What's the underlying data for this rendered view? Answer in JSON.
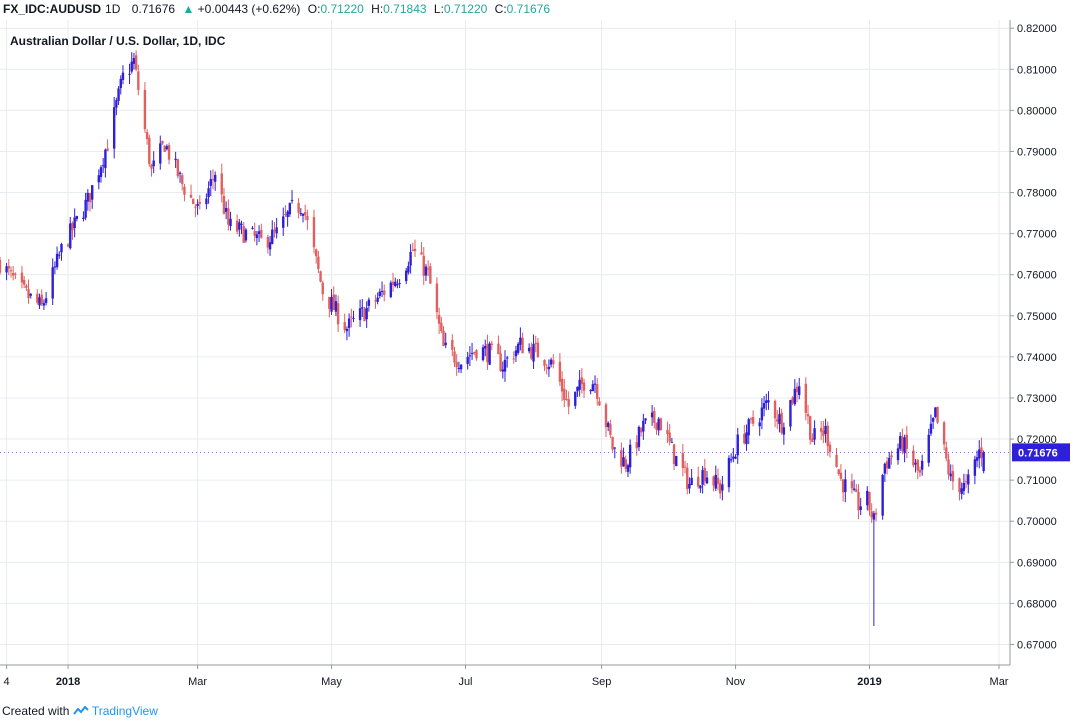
{
  "header": {
    "symbol": "FX_IDC:AUDUSD",
    "interval": "1D",
    "last": "0.71676",
    "change": "+0.00443 (+0.62%)",
    "o_label": "O:",
    "o_value": "0.71220",
    "h_label": "H:",
    "h_value": "0.71843",
    "l_label": "L:",
    "l_value": "0.71220",
    "c_label": "C:",
    "c_value": "0.71676",
    "arrow": "▲"
  },
  "subtitle": "Australian Dollar / U.S. Dollar, 1D, IDC",
  "footer": {
    "created_with": "Created with",
    "brand": "TradingView"
  },
  "colors": {
    "up": "#2e1fd8",
    "down": "#e06060",
    "price_tag": "#2e1fd8",
    "grid": "#e6ecf2",
    "accent_green": "#26a69a"
  },
  "chart_data": {
    "type": "candlestick",
    "title": "Australian Dollar / U.S. Dollar, 1D, IDC",
    "ylim": [
      0.665,
      0.822
    ],
    "y_ticks": [
      "0.82000",
      "0.81000",
      "0.80000",
      "0.79000",
      "0.78000",
      "0.77000",
      "0.76000",
      "0.75000",
      "0.74000",
      "0.73000",
      "0.72000",
      "0.71000",
      "0.70000",
      "0.69000",
      "0.68000",
      "0.67000"
    ],
    "x_ticks": [
      {
        "label": "4",
        "date": "2017-12-04"
      },
      {
        "label": "2018",
        "date": "2018-01-01"
      },
      {
        "label": "Mar",
        "date": "2018-03-01"
      },
      {
        "label": "May",
        "date": "2018-05-01"
      },
      {
        "label": "Jul",
        "date": "2018-07-01"
      },
      {
        "label": "Sep",
        "date": "2018-09-01"
      },
      {
        "label": "Nov",
        "date": "2018-11-01"
      },
      {
        "label": "2019",
        "date": "2019-01-01"
      },
      {
        "label": "Mar",
        "date": "2019-03-01"
      }
    ],
    "date_range": [
      "2017-12-01",
      "2019-03-06"
    ],
    "last_price": "0.71676",
    "close_path": [
      [
        "2017-12-01",
        0.763
      ],
      [
        "2017-12-11",
        0.756
      ],
      [
        "2017-12-20",
        0.752
      ],
      [
        "2017-12-29",
        0.766
      ],
      [
        "2018-01-10",
        0.778
      ],
      [
        "2018-01-19",
        0.792
      ],
      [
        "2018-01-26",
        0.808
      ],
      [
        "2018-01-31",
        0.812
      ],
      [
        "2018-02-08",
        0.785
      ],
      [
        "2018-02-14",
        0.792
      ],
      [
        "2018-02-22",
        0.782
      ],
      [
        "2018-03-02",
        0.775
      ],
      [
        "2018-03-09",
        0.785
      ],
      [
        "2018-03-15",
        0.772
      ],
      [
        "2018-03-23",
        0.77
      ],
      [
        "2018-03-30",
        0.768
      ],
      [
        "2018-04-06",
        0.77
      ],
      [
        "2018-04-13",
        0.776
      ],
      [
        "2018-04-18",
        0.777
      ],
      [
        "2018-04-27",
        0.756
      ],
      [
        "2018-05-08",
        0.747
      ],
      [
        "2018-05-16",
        0.751
      ],
      [
        "2018-05-25",
        0.756
      ],
      [
        "2018-06-01",
        0.76
      ],
      [
        "2018-06-07",
        0.766
      ],
      [
        "2018-06-14",
        0.76
      ],
      [
        "2018-06-21",
        0.742
      ],
      [
        "2018-06-29",
        0.739
      ],
      [
        "2018-07-06",
        0.742
      ],
      [
        "2018-07-12",
        0.741
      ],
      [
        "2018-07-18",
        0.738
      ],
      [
        "2018-07-26",
        0.743
      ],
      [
        "2018-08-03",
        0.741
      ],
      [
        "2018-08-10",
        0.738
      ],
      [
        "2018-08-17",
        0.728
      ],
      [
        "2018-08-24",
        0.734
      ],
      [
        "2018-08-29",
        0.734
      ],
      [
        "2018-09-06",
        0.718
      ],
      [
        "2018-09-12",
        0.714
      ],
      [
        "2018-09-20",
        0.723
      ],
      [
        "2018-09-27",
        0.725
      ],
      [
        "2018-10-04",
        0.716
      ],
      [
        "2018-10-11",
        0.709
      ],
      [
        "2018-10-18",
        0.712
      ],
      [
        "2018-10-25",
        0.708
      ],
      [
        "2018-11-02",
        0.719
      ],
      [
        "2018-11-09",
        0.724
      ],
      [
        "2018-11-16",
        0.729
      ],
      [
        "2018-11-22",
        0.724
      ],
      [
        "2018-11-30",
        0.734
      ],
      [
        "2018-12-06",
        0.72
      ],
      [
        "2018-12-12",
        0.722
      ],
      [
        "2018-12-19",
        0.71
      ],
      [
        "2018-12-27",
        0.704
      ],
      [
        "2018-12-31",
        0.705
      ],
      [
        "2019-01-03",
        0.7
      ],
      [
        "2019-01-08",
        0.714
      ],
      [
        "2019-01-16",
        0.719
      ],
      [
        "2019-01-24",
        0.711
      ],
      [
        "2019-01-31",
        0.726
      ],
      [
        "2019-02-07",
        0.71
      ],
      [
        "2019-02-14",
        0.708
      ],
      [
        "2019-02-20",
        0.717
      ],
      [
        "2019-02-22",
        0.7168
      ]
    ]
  }
}
